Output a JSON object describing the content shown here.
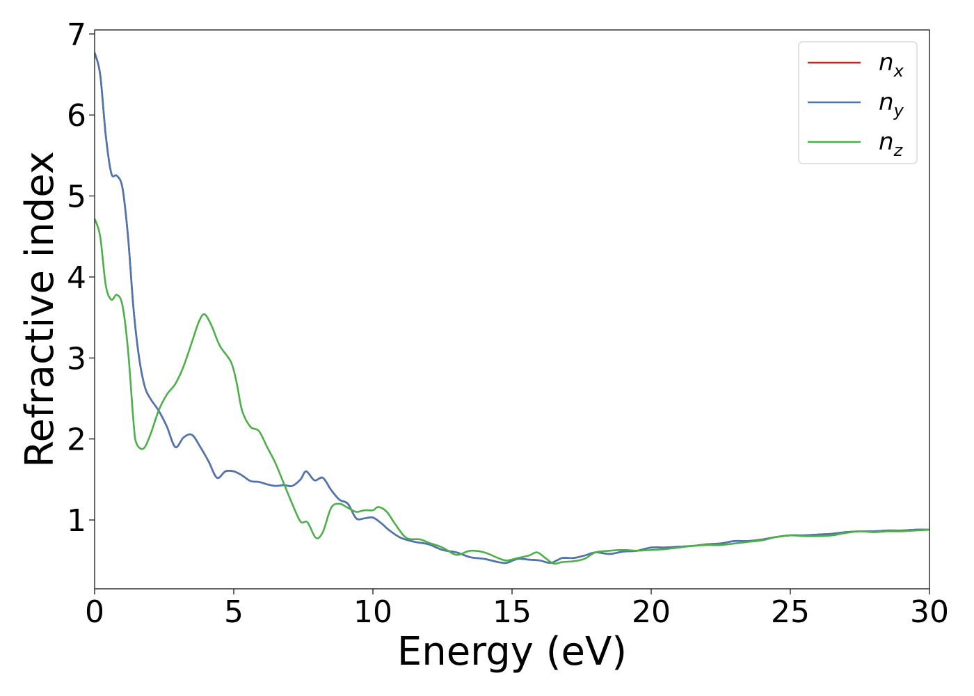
{
  "chart_data": {
    "type": "line",
    "title": "",
    "xlabel": "Energy (eV)",
    "ylabel": "Refractive index",
    "xlim": [
      0,
      30
    ],
    "ylim": [
      0.15,
      7.05
    ],
    "xticks": [
      0,
      5,
      10,
      15,
      20,
      25,
      30
    ],
    "yticks": [
      1,
      2,
      3,
      4,
      5,
      6,
      7
    ],
    "grid": false,
    "legend_position": "top-right",
    "series": [
      {
        "name": "n",
        "subscript": "x",
        "color": "#e41a1c",
        "x": [
          0,
          0.2,
          0.4,
          0.6,
          0.8,
          1.0,
          1.2,
          1.4,
          1.6,
          1.8,
          2.0,
          2.3,
          2.6,
          2.9,
          3.2,
          3.5,
          3.8,
          4.1,
          4.4,
          4.7,
          5.0,
          5.3,
          5.6,
          5.9,
          6.2,
          6.5,
          6.8,
          7.1,
          7.4,
          7.6,
          7.9,
          8.2,
          8.5,
          8.8,
          9.1,
          9.4,
          9.7,
          10.0,
          10.3,
          10.6,
          11.0,
          11.5,
          12.0,
          12.5,
          13.0,
          13.5,
          14.0,
          14.5,
          14.8,
          15.2,
          15.6,
          16.0,
          16.4,
          16.8,
          17.2,
          17.6,
          18.0,
          18.5,
          19.0,
          19.5,
          20.0,
          20.5,
          21.0,
          21.5,
          22.0,
          22.5,
          23.0,
          23.5,
          24.0,
          24.5,
          25.0,
          25.5,
          26.0,
          26.5,
          27.0,
          27.5,
          28.0,
          28.5,
          29.0,
          29.5,
          30.0
        ],
        "y": [
          6.77,
          6.5,
          5.75,
          5.28,
          5.25,
          5.1,
          4.5,
          3.6,
          3.0,
          2.65,
          2.5,
          2.35,
          2.15,
          1.9,
          2.02,
          2.05,
          1.9,
          1.72,
          1.52,
          1.6,
          1.6,
          1.55,
          1.48,
          1.47,
          1.44,
          1.42,
          1.43,
          1.42,
          1.5,
          1.6,
          1.49,
          1.52,
          1.37,
          1.25,
          1.2,
          1.02,
          1.02,
          1.03,
          0.96,
          0.87,
          0.78,
          0.73,
          0.7,
          0.63,
          0.6,
          0.54,
          0.52,
          0.48,
          0.47,
          0.52,
          0.51,
          0.5,
          0.47,
          0.53,
          0.53,
          0.56,
          0.6,
          0.58,
          0.61,
          0.62,
          0.66,
          0.66,
          0.67,
          0.68,
          0.7,
          0.71,
          0.74,
          0.74,
          0.76,
          0.79,
          0.81,
          0.81,
          0.82,
          0.83,
          0.85,
          0.86,
          0.86,
          0.87,
          0.87,
          0.88,
          0.88
        ]
      },
      {
        "name": "n",
        "subscript": "y",
        "color": "#4a77b0",
        "x": [
          0,
          0.2,
          0.4,
          0.6,
          0.8,
          1.0,
          1.2,
          1.4,
          1.6,
          1.8,
          2.0,
          2.3,
          2.6,
          2.9,
          3.2,
          3.5,
          3.8,
          4.1,
          4.4,
          4.7,
          5.0,
          5.3,
          5.6,
          5.9,
          6.2,
          6.5,
          6.8,
          7.1,
          7.4,
          7.6,
          7.9,
          8.2,
          8.5,
          8.8,
          9.1,
          9.4,
          9.7,
          10.0,
          10.3,
          10.6,
          11.0,
          11.5,
          12.0,
          12.5,
          13.0,
          13.5,
          14.0,
          14.5,
          14.8,
          15.2,
          15.6,
          16.0,
          16.4,
          16.8,
          17.2,
          17.6,
          18.0,
          18.5,
          19.0,
          19.5,
          20.0,
          20.5,
          21.0,
          21.5,
          22.0,
          22.5,
          23.0,
          23.5,
          24.0,
          24.5,
          25.0,
          25.5,
          26.0,
          26.5,
          27.0,
          27.5,
          28.0,
          28.5,
          29.0,
          29.5,
          30.0
        ],
        "y": [
          6.77,
          6.5,
          5.75,
          5.28,
          5.25,
          5.1,
          4.5,
          3.6,
          3.0,
          2.65,
          2.5,
          2.35,
          2.15,
          1.9,
          2.02,
          2.05,
          1.9,
          1.72,
          1.52,
          1.6,
          1.6,
          1.55,
          1.48,
          1.47,
          1.44,
          1.42,
          1.43,
          1.42,
          1.5,
          1.6,
          1.49,
          1.52,
          1.37,
          1.25,
          1.2,
          1.02,
          1.02,
          1.03,
          0.96,
          0.87,
          0.78,
          0.73,
          0.7,
          0.63,
          0.6,
          0.54,
          0.52,
          0.48,
          0.47,
          0.52,
          0.51,
          0.5,
          0.47,
          0.53,
          0.53,
          0.56,
          0.6,
          0.58,
          0.61,
          0.62,
          0.66,
          0.66,
          0.67,
          0.68,
          0.7,
          0.71,
          0.74,
          0.74,
          0.76,
          0.79,
          0.81,
          0.81,
          0.82,
          0.83,
          0.85,
          0.86,
          0.86,
          0.87,
          0.87,
          0.88,
          0.88
        ]
      },
      {
        "name": "n",
        "subscript": "z",
        "color": "#4daf4a",
        "x": [
          0,
          0.2,
          0.4,
          0.6,
          0.8,
          1.0,
          1.2,
          1.4,
          1.5,
          1.75,
          2.0,
          2.3,
          2.6,
          2.9,
          3.2,
          3.5,
          3.75,
          3.95,
          4.2,
          4.5,
          4.9,
          5.1,
          5.3,
          5.6,
          5.9,
          6.2,
          6.5,
          6.8,
          7.1,
          7.4,
          7.65,
          7.95,
          8.2,
          8.5,
          8.8,
          9.1,
          9.4,
          9.7,
          10.0,
          10.2,
          10.5,
          10.8,
          11.2,
          11.7,
          12.0,
          12.5,
          13.0,
          13.5,
          14.0,
          14.5,
          14.8,
          15.2,
          15.6,
          15.9,
          16.2,
          16.5,
          16.8,
          17.2,
          17.6,
          18.0,
          18.5,
          19.0,
          19.5,
          20.0,
          20.5,
          21.0,
          21.5,
          22.0,
          22.5,
          23.0,
          23.5,
          24.0,
          24.5,
          25.0,
          25.5,
          26.0,
          26.5,
          27.0,
          27.5,
          28.0,
          28.5,
          29.0,
          29.5,
          30.0
        ],
        "y": [
          4.72,
          4.5,
          3.9,
          3.72,
          3.78,
          3.65,
          3.1,
          2.2,
          1.95,
          1.88,
          2.05,
          2.35,
          2.55,
          2.68,
          2.9,
          3.2,
          3.45,
          3.54,
          3.4,
          3.15,
          2.95,
          2.7,
          2.35,
          2.15,
          2.1,
          1.9,
          1.7,
          1.45,
          1.2,
          0.98,
          0.97,
          0.78,
          0.85,
          1.15,
          1.2,
          1.15,
          1.1,
          1.12,
          1.12,
          1.16,
          1.1,
          0.95,
          0.78,
          0.76,
          0.72,
          0.66,
          0.57,
          0.62,
          0.6,
          0.53,
          0.5,
          0.53,
          0.56,
          0.6,
          0.53,
          0.46,
          0.48,
          0.49,
          0.52,
          0.6,
          0.62,
          0.63,
          0.62,
          0.63,
          0.64,
          0.66,
          0.68,
          0.69,
          0.69,
          0.71,
          0.73,
          0.75,
          0.79,
          0.81,
          0.8,
          0.8,
          0.81,
          0.84,
          0.86,
          0.85,
          0.86,
          0.86,
          0.87,
          0.88
        ]
      }
    ]
  }
}
